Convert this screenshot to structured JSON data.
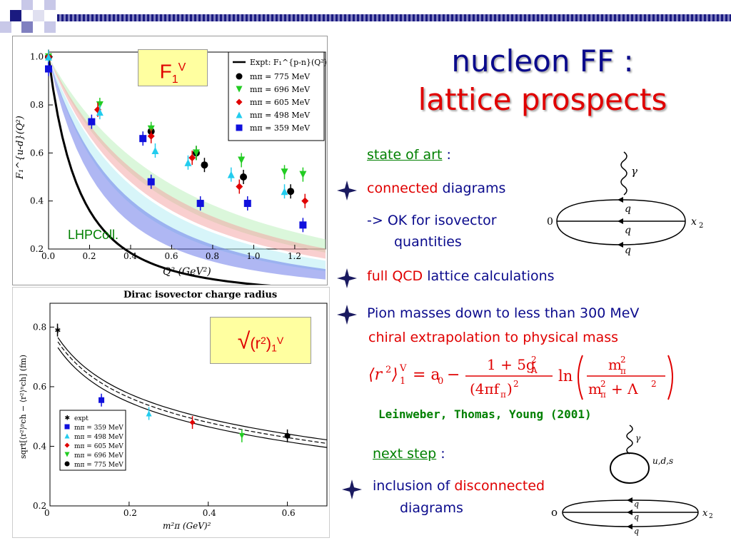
{
  "slide": {
    "title_line1": "nucleon FF :",
    "title_line2": "lattice prospects",
    "state_of_art": "state of art",
    "colon": ":",
    "connected": "connected",
    "diagrams": "diagrams",
    "ok_line1": "-> OK for isovector",
    "ok_line2": "quantities",
    "full_qcd": "full QCD",
    "lattice_calc": "lattice calculations",
    "pion_masses": "Pion masses down to less than 300 MeV",
    "chiral": "chiral extrapolation to physical mass",
    "reference": "Leinweber, Thomas, Young (2001)",
    "next_step": "next step",
    "inclusion_of": "inclusion of",
    "disconnected": "disconnected",
    "diagrams2": "diagrams"
  },
  "diagram1": {
    "gamma": "γ",
    "q": "q",
    "zero": "0",
    "x2": "x",
    "x2sub": "2"
  },
  "diagram2": {
    "gamma": "γ",
    "uds": "u,d,s",
    "q": "q",
    "zero": "o",
    "x2": "x",
    "x2sub": "2"
  },
  "labels": {
    "f1v_box": "F",
    "f1v_sub": "1",
    "f1v_sup": "V",
    "lhpcoll": "LHPColl.",
    "radius_box_sqrt": "√",
    "radius_box_main": "(r",
    "radius_box_sup": "2",
    "radius_box_close": ")",
    "radius_box_sub": "1",
    "radius_box_v": "V"
  },
  "chart_data": [
    {
      "type": "scatter",
      "xlabel": "Q² (GeV²)",
      "ylabel": "F₁^{u-d}(Q²)",
      "xlim": [
        0.0,
        1.35
      ],
      "ylim": [
        0.2,
        1.02
      ],
      "xticks": [
        "0.0",
        "0.2",
        "0.4",
        "0.6",
        "0.8",
        "1.0",
        "1.2"
      ],
      "yticks": [
        "0.2",
        "0.4",
        "0.6",
        "0.8",
        "1.0"
      ],
      "legend_placement": "top-right",
      "expt_label": "Expt: F₁^{p-n}(Q²)",
      "series": [
        {
          "name": "mπ = 775 MeV",
          "color": "#000000",
          "marker": "circle",
          "x": [
            0.0,
            0.5,
            0.72,
            0.76,
            0.95,
            1.18
          ],
          "y": [
            1.0,
            0.69,
            0.6,
            0.55,
            0.5,
            0.44
          ]
        },
        {
          "name": "mπ = 696 MeV",
          "color": "#22cc22",
          "marker": "triangle-down",
          "x": [
            0.0,
            0.25,
            0.5,
            0.72,
            0.94,
            1.15,
            1.24
          ],
          "y": [
            1.0,
            0.8,
            0.7,
            0.6,
            0.57,
            0.52,
            0.51
          ]
        },
        {
          "name": "mπ = 605 MeV",
          "color": "#e00000",
          "marker": "diamond",
          "x": [
            0.0,
            0.24,
            0.5,
            0.7,
            0.93,
            1.25
          ],
          "y": [
            1.0,
            0.78,
            0.67,
            0.58,
            0.46,
            0.4
          ]
        },
        {
          "name": "mπ = 498 MeV",
          "color": "#22ccee",
          "marker": "triangle-up",
          "x": [
            0.0,
            0.25,
            0.52,
            0.68,
            0.89,
            1.15
          ],
          "y": [
            1.0,
            0.77,
            0.61,
            0.56,
            0.51,
            0.44
          ]
        },
        {
          "name": "mπ = 359 MeV",
          "color": "#1010dd",
          "marker": "square",
          "x": [
            0.0,
            0.21,
            0.46,
            0.5,
            0.74,
            0.97,
            1.24
          ],
          "y": [
            0.95,
            0.73,
            0.66,
            0.48,
            0.39,
            0.39,
            0.3
          ]
        }
      ]
    },
    {
      "type": "scatter",
      "title": "Dirac isovector charge radius",
      "xlabel": "m²π (GeV)²",
      "ylabel": "sqrt[⟨r²⟩ᵖch − ⟨r²⟩ⁿch] (fm)",
      "xlim": [
        0.0,
        0.7
      ],
      "ylim": [
        0.2,
        0.88
      ],
      "xticks": [
        "0",
        "0.2",
        "0.4",
        "0.6"
      ],
      "yticks": [
        "0.2",
        "0.4",
        "0.6",
        "0.8"
      ],
      "legend_placement": "bottom-left",
      "series": [
        {
          "name": "expt",
          "color": "#000000",
          "marker": "star",
          "x": [
            0.019
          ],
          "y": [
            0.79
          ]
        },
        {
          "name": "mπ = 359 MeV",
          "color": "#1010dd",
          "marker": "square",
          "x": [
            0.13
          ],
          "y": [
            0.555
          ]
        },
        {
          "name": "mπ = 498 MeV",
          "color": "#22ccee",
          "marker": "triangle-up",
          "x": [
            0.25
          ],
          "y": [
            0.51
          ]
        },
        {
          "name": "mπ = 605 MeV",
          "color": "#e00000",
          "marker": "diamond",
          "x": [
            0.36
          ],
          "y": [
            0.48
          ]
        },
        {
          "name": "mπ = 696 MeV",
          "color": "#22cc22",
          "marker": "triangle-down",
          "x": [
            0.485
          ],
          "y": [
            0.435
          ]
        },
        {
          "name": "mπ = 775 MeV",
          "color": "#000000",
          "marker": "circle",
          "x": [
            0.6
          ],
          "y": [
            0.435
          ]
        }
      ]
    }
  ]
}
